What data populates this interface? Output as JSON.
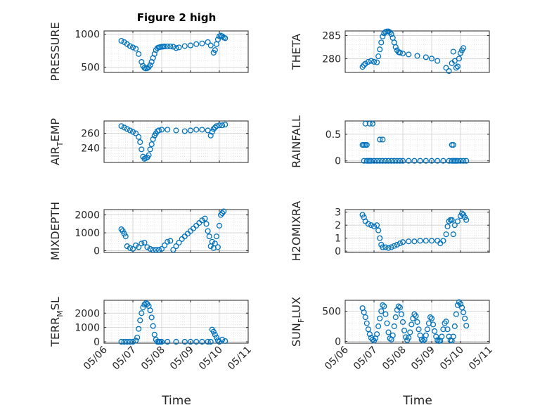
{
  "figure": {
    "title": "Figure 2 high",
    "xlabel": "Time"
  },
  "chart_data": [
    {
      "type": "scatter",
      "id": "pressure",
      "ylabel": {
        "main": "PRESSURE"
      },
      "yticks": [
        500,
        1000
      ],
      "ylim": [
        420,
        1050
      ],
      "xticks": [
        "05/06",
        "05/07",
        "05/08",
        "05/09",
        "05/10",
        "05/11"
      ],
      "xlim": [
        0,
        5
      ],
      "show_xticklabels": false,
      "x": [
        0.6,
        0.7,
        0.8,
        0.9,
        1.0,
        1.1,
        1.2,
        1.3,
        1.35,
        1.4,
        1.45,
        1.5,
        1.55,
        1.6,
        1.65,
        1.7,
        1.75,
        1.8,
        1.85,
        1.9,
        1.95,
        2.0,
        2.05,
        2.1,
        2.2,
        2.3,
        2.4,
        2.5,
        2.6,
        2.8,
        3.0,
        3.2,
        3.4,
        3.6,
        3.7,
        3.8,
        3.85,
        3.9,
        3.95,
        4.0,
        4.05,
        4.1,
        4.15,
        4.2
      ],
      "y": [
        900,
        880,
        850,
        820,
        800,
        780,
        700,
        580,
        520,
        490,
        480,
        485,
        500,
        530,
        580,
        640,
        700,
        760,
        790,
        800,
        805,
        810,
        812,
        815,
        815,
        815,
        810,
        790,
        800,
        820,
        830,
        850,
        860,
        880,
        830,
        720,
        760,
        850,
        920,
        970,
        980,
        970,
        950,
        940
      ]
    },
    {
      "type": "scatter",
      "id": "theta",
      "ylabel": {
        "main": "THETA"
      },
      "yticks": [
        280,
        285
      ],
      "ylim": [
        277,
        286
      ],
      "xticks": [
        "05/06",
        "05/07",
        "05/08",
        "05/09",
        "05/10",
        "05/11"
      ],
      "xlim": [
        0,
        5
      ],
      "show_xticklabels": false,
      "x": [
        0.6,
        0.65,
        0.7,
        0.8,
        0.9,
        1.0,
        1.1,
        1.15,
        1.2,
        1.25,
        1.3,
        1.35,
        1.4,
        1.45,
        1.5,
        1.55,
        1.6,
        1.65,
        1.7,
        1.75,
        1.8,
        1.85,
        1.9,
        2.0,
        2.2,
        2.5,
        2.8,
        3.0,
        3.2,
        3.5,
        3.6,
        3.7,
        3.75,
        3.8,
        3.85,
        3.9,
        3.95,
        4.0,
        4.05,
        4.1
      ],
      "y": [
        278.2,
        278.6,
        278.9,
        279.3,
        279.5,
        279.3,
        279.2,
        280.5,
        282.0,
        283.5,
        284.8,
        285.5,
        285.8,
        285.9,
        285.9,
        285.7,
        285.3,
        284.5,
        283.5,
        282.5,
        281.8,
        281.4,
        281.3,
        281.1,
        280.9,
        280.6,
        280.3,
        280.0,
        279.5,
        278.0,
        277.3,
        279.0,
        281.5,
        279.5,
        278.0,
        278.3,
        280.0,
        281.2,
        281.8,
        282.3
      ]
    },
    {
      "type": "scatter",
      "id": "air-temp",
      "ylabel": {
        "main": "AIR",
        "sub": "T",
        "rest": "EMP"
      },
      "yticks": [
        240,
        260
      ],
      "ylim": [
        220,
        277
      ],
      "xticks": [
        "05/06",
        "05/07",
        "05/08",
        "05/09",
        "05/10",
        "05/11"
      ],
      "xlim": [
        0,
        5
      ],
      "show_xticklabels": false,
      "x": [
        0.6,
        0.7,
        0.8,
        0.9,
        1.0,
        1.1,
        1.2,
        1.25,
        1.3,
        1.35,
        1.4,
        1.45,
        1.5,
        1.55,
        1.6,
        1.65,
        1.7,
        1.75,
        1.8,
        1.85,
        1.9,
        2.0,
        2.2,
        2.5,
        2.8,
        3.0,
        3.2,
        3.4,
        3.6,
        3.7,
        3.75,
        3.8,
        3.85,
        3.9,
        4.0,
        4.1,
        4.2
      ],
      "y": [
        270,
        268,
        266,
        264,
        262,
        260,
        255,
        248,
        238,
        228,
        225,
        226,
        227,
        230,
        238,
        245,
        252,
        257,
        260,
        263,
        264,
        265,
        265,
        264,
        263,
        264,
        265,
        265,
        264,
        257,
        262,
        266,
        268,
        270,
        271,
        271,
        272
      ]
    },
    {
      "type": "scatter",
      "id": "rainfall",
      "ylabel": {
        "main": "RAINFALL"
      },
      "yticks": [
        0,
        0.5
      ],
      "ylim": [
        -0.03,
        0.75
      ],
      "xticks": [
        "05/06",
        "05/07",
        "05/08",
        "05/09",
        "05/10",
        "05/11"
      ],
      "xlim": [
        0,
        5
      ],
      "show_xticklabels": false,
      "x": [
        0.6,
        0.65,
        0.7,
        0.75,
        0.8,
        0.85,
        0.9,
        1.0,
        1.1,
        1.2,
        1.3,
        1.4,
        1.5,
        1.6,
        1.7,
        1.8,
        1.9,
        2.0,
        2.2,
        2.4,
        2.6,
        2.8,
        3.0,
        3.2,
        3.4,
        3.6,
        3.7,
        3.75,
        3.8,
        3.85,
        3.9,
        4.0,
        4.1,
        4.2,
        0.7,
        0.85,
        0.95,
        1.2,
        1.3,
        0.65,
        0.75,
        3.7,
        3.75
      ],
      "y": [
        0.3,
        0.3,
        0.3,
        0.3,
        0,
        0,
        0,
        0,
        0,
        0,
        0,
        0,
        0,
        0,
        0,
        0,
        0,
        0,
        0,
        0,
        0,
        0,
        0,
        0,
        0,
        0,
        0,
        0,
        0,
        0,
        0,
        0,
        0,
        0,
        0.7,
        0.7,
        0.7,
        0.4,
        0.4,
        0,
        0,
        0.3,
        0.3
      ]
    },
    {
      "type": "scatter",
      "id": "mixdepth",
      "ylabel": {
        "main": "MIXDEPTH"
      },
      "yticks": [
        0,
        1000,
        2000
      ],
      "ylim": [
        -100,
        2300
      ],
      "xticks": [
        "05/06",
        "05/07",
        "05/08",
        "05/09",
        "05/10",
        "05/11"
      ],
      "xlim": [
        0,
        5
      ],
      "show_xticklabels": false,
      "x": [
        0.6,
        0.65,
        0.7,
        0.75,
        0.8,
        0.9,
        1.0,
        1.1,
        1.2,
        1.3,
        1.4,
        1.5,
        1.6,
        1.7,
        1.8,
        1.9,
        2.0,
        2.1,
        2.2,
        2.3,
        2.4,
        2.5,
        2.6,
        2.7,
        2.8,
        2.9,
        3.0,
        3.1,
        3.2,
        3.3,
        3.4,
        3.5,
        3.55,
        3.6,
        3.65,
        3.7,
        3.75,
        3.8,
        3.85,
        3.9,
        3.95,
        4.0,
        4.05,
        4.1,
        4.15
      ],
      "y": [
        1200,
        1100,
        950,
        800,
        250,
        150,
        100,
        300,
        200,
        400,
        450,
        200,
        100,
        50,
        50,
        50,
        100,
        300,
        500,
        550,
        50,
        250,
        450,
        650,
        800,
        950,
        1100,
        1250,
        1400,
        1550,
        1700,
        1800,
        1500,
        1100,
        800,
        250,
        500,
        150,
        400,
        800,
        200,
        1400,
        2000,
        2100,
        2200
      ]
    },
    {
      "type": "scatter",
      "id": "h2omixra",
      "ylabel": {
        "main": "H2OMIXRA"
      },
      "yticks": [
        0,
        1,
        2,
        3
      ],
      "ylim": [
        -0.1,
        3.2
      ],
      "xticks": [
        "05/06",
        "05/07",
        "05/08",
        "05/09",
        "05/10",
        "05/11"
      ],
      "xlim": [
        0,
        5
      ],
      "show_xticklabels": false,
      "x": [
        0.6,
        0.65,
        0.7,
        0.8,
        0.9,
        1.0,
        1.1,
        1.15,
        1.2,
        1.25,
        1.3,
        1.4,
        1.5,
        1.6,
        1.7,
        1.8,
        1.9,
        2.0,
        2.2,
        2.4,
        2.6,
        2.8,
        3.0,
        3.2,
        3.3,
        3.4,
        3.5,
        3.55,
        3.6,
        3.65,
        3.7,
        3.75,
        3.8,
        3.9,
        4.0,
        4.05,
        4.1,
        4.15,
        4.2
      ],
      "y": [
        2.8,
        2.6,
        2.3,
        2.1,
        2.0,
        1.9,
        2.0,
        1.6,
        1.0,
        0.5,
        0.3,
        0.3,
        0.25,
        0.3,
        0.4,
        0.5,
        0.6,
        0.7,
        0.75,
        0.75,
        0.8,
        0.8,
        0.8,
        0.8,
        0.6,
        0.8,
        1.3,
        1.9,
        2.3,
        2.4,
        2.4,
        1.3,
        2.0,
        2.3,
        2.7,
        2.9,
        2.8,
        2.6,
        2.4
      ]
    },
    {
      "type": "scatter",
      "id": "terr-msl",
      "ylabel": {
        "main": "TERR",
        "sub": "M",
        "rest": "SL"
      },
      "yticks": [
        0,
        1000,
        2000
      ],
      "ylim": [
        -100,
        2900
      ],
      "xticks": [
        "05/06",
        "05/07",
        "05/08",
        "05/09",
        "05/10",
        "05/11"
      ],
      "xlim": [
        0,
        5
      ],
      "show_xticklabels": true,
      "x": [
        0.6,
        0.7,
        0.8,
        0.9,
        1.0,
        1.1,
        1.15,
        1.2,
        1.25,
        1.3,
        1.35,
        1.4,
        1.45,
        1.5,
        1.55,
        1.6,
        1.65,
        1.7,
        1.75,
        1.8,
        1.85,
        1.9,
        1.95,
        2.0,
        2.2,
        2.5,
        2.8,
        3.0,
        3.2,
        3.4,
        3.6,
        3.7,
        3.75,
        3.8,
        3.85,
        3.9,
        3.95,
        4.0,
        4.1,
        4.2
      ],
      "y": [
        0,
        0,
        0,
        0,
        0,
        80,
        300,
        900,
        1500,
        2000,
        2400,
        2600,
        2700,
        2650,
        2500,
        2200,
        1700,
        1100,
        500,
        150,
        0,
        0,
        0,
        0,
        0,
        0,
        0,
        0,
        0,
        0,
        0,
        0,
        850,
        700,
        500,
        300,
        100,
        0,
        150,
        50
      ]
    },
    {
      "type": "scatter",
      "id": "sun-flux",
      "ylabel": {
        "main": "SUN",
        "sub": "F",
        "rest": "LUX"
      },
      "yticks": [
        0,
        500
      ],
      "ylim": [
        -30,
        680
      ],
      "xticks": [
        "05/06",
        "05/07",
        "05/08",
        "05/09",
        "05/10",
        "05/11"
      ],
      "xlim": [
        0,
        5
      ],
      "show_xticklabels": true,
      "x": [
        0.6,
        0.65,
        0.7,
        0.75,
        0.8,
        0.85,
        0.9,
        0.95,
        1.0,
        1.05,
        1.1,
        1.15,
        1.2,
        1.25,
        1.3,
        1.35,
        1.4,
        1.45,
        1.5,
        1.55,
        1.6,
        1.65,
        1.7,
        1.75,
        1.8,
        1.85,
        1.9,
        1.95,
        2.0,
        2.05,
        2.1,
        2.15,
        2.2,
        2.25,
        2.3,
        2.35,
        2.4,
        2.45,
        2.5,
        2.55,
        2.6,
        2.65,
        2.7,
        2.75,
        2.8,
        2.85,
        2.9,
        2.95,
        3.0,
        3.05,
        3.1,
        3.15,
        3.2,
        3.25,
        3.3,
        3.35,
        3.4,
        3.45,
        3.5,
        3.55,
        3.6,
        3.65,
        3.7,
        3.75,
        3.8,
        3.85,
        3.9,
        3.95,
        4.0,
        4.05,
        4.1,
        4.15,
        4.2
      ],
      "y": [
        550,
        480,
        400,
        300,
        200,
        120,
        60,
        30,
        10,
        50,
        120,
        250,
        380,
        500,
        600,
        580,
        450,
        300,
        150,
        50,
        30,
        100,
        250,
        400,
        520,
        580,
        560,
        450,
        320,
        180,
        70,
        20,
        60,
        150,
        280,
        380,
        450,
        420,
        320,
        200,
        100,
        30,
        10,
        30,
        100,
        200,
        300,
        400,
        380,
        280,
        170,
        80,
        20,
        5,
        10,
        80,
        200,
        300,
        330,
        200,
        80,
        20,
        10,
        80,
        250,
        450,
        600,
        650,
        620,
        560,
        480,
        380,
        260
      ]
    }
  ]
}
